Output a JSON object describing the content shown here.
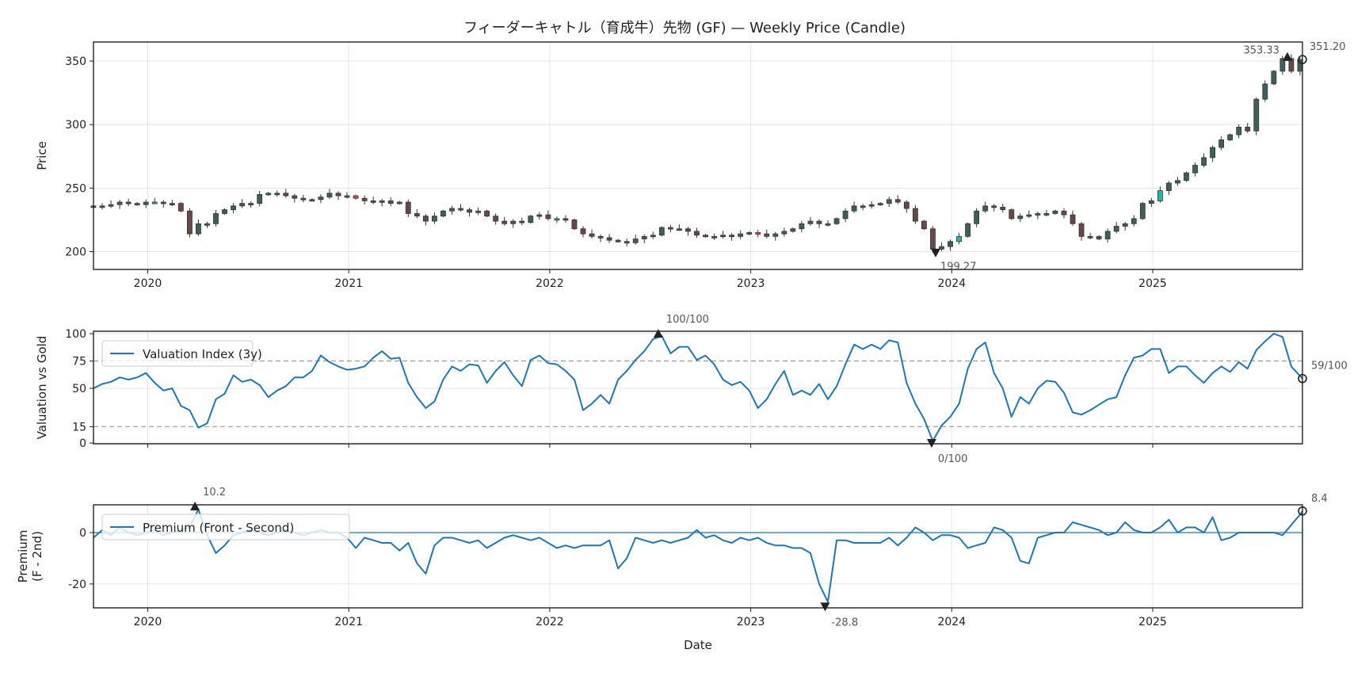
{
  "chart_data": [
    {
      "type": "candlestick",
      "title": "フィーダーキャトル（育成牛）先物 (GF) — Weekly Price (Candle)",
      "ylabel": "Price",
      "xlabel": "",
      "xlim": [
        2019.73,
        2025.745
      ],
      "ylim": [
        186,
        365
      ],
      "grid": true,
      "x_start": 2019.73,
      "x_step": 0.0435,
      "close": [
        236,
        236,
        237,
        239,
        238,
        237,
        239,
        239,
        238,
        238,
        232,
        214,
        222,
        222,
        230,
        233,
        236,
        238,
        238,
        245,
        246,
        246,
        244,
        242,
        241,
        241,
        243,
        246,
        244,
        244,
        242,
        240,
        239,
        240,
        238,
        239,
        230,
        228,
        224,
        228,
        232,
        234,
        233,
        231,
        232,
        228,
        224,
        222,
        224,
        223,
        228,
        229,
        226,
        226,
        225,
        218,
        214,
        212,
        211,
        209,
        208,
        207,
        210,
        212,
        213,
        219,
        218,
        218,
        216,
        213,
        212,
        212,
        213,
        212,
        214,
        215,
        214,
        212,
        214,
        216,
        218,
        222,
        224,
        222,
        222,
        226,
        232,
        236,
        236,
        237,
        238,
        241,
        239,
        234,
        224,
        218,
        202,
        204,
        208,
        212,
        222,
        232,
        236,
        235,
        233,
        226,
        228,
        229,
        230,
        230,
        232,
        229,
        222,
        212,
        212,
        210,
        216,
        220,
        222,
        226,
        238,
        240,
        248,
        254,
        256,
        262,
        268,
        274,
        282,
        288,
        292,
        298,
        295,
        320,
        332,
        342,
        352,
        342,
        351.2
      ],
      "yticks": [
        "200",
        "250",
        "300",
        "350"
      ],
      "ytick_values": [
        200,
        250,
        300,
        350
      ],
      "xticks": [
        "2020",
        "2021",
        "2022",
        "2023",
        "2024",
        "2025"
      ],
      "xtick_values": [
        2020,
        2021,
        2022,
        2023,
        2024,
        2025
      ],
      "annotations": {
        "high": {
          "x": 2025.67,
          "y": 353.33,
          "label": "353.33"
        },
        "low": {
          "x": 2023.92,
          "y": 199.27,
          "label": "199.27"
        },
        "last": {
          "x": 2025.745,
          "y": 351.2,
          "label": "351.20"
        }
      },
      "colors": {
        "up": "#3f5f5a",
        "down": "#6a4848",
        "edge": "#333333",
        "up_accent": "#2bb5a0",
        "down_accent": "#e04848"
      }
    },
    {
      "type": "line",
      "ylabel": "Valuation vs Gold",
      "xlim": [
        2019.73,
        2025.745
      ],
      "ylim": [
        -0.7,
        102.2
      ],
      "grid": true,
      "legend": {
        "label": "Valuation Index (3y)",
        "placement": "top-left"
      },
      "x_start": 2019.73,
      "x_step": 0.0435,
      "values": [
        50,
        54,
        56,
        60,
        58,
        60,
        64,
        55,
        48,
        50,
        34,
        30,
        14,
        18,
        40,
        45,
        62,
        56,
        58,
        53,
        42,
        48,
        52,
        60,
        60,
        66,
        80,
        74,
        70,
        67,
        68,
        70,
        78,
        84,
        77,
        78,
        55,
        42,
        32,
        38,
        58,
        70,
        66,
        72,
        71,
        55,
        66,
        74,
        62,
        52,
        76,
        80,
        73,
        72,
        66,
        58,
        30,
        36,
        44,
        36,
        58,
        66,
        76,
        84,
        95,
        98,
        82,
        88,
        88,
        76,
        80,
        72,
        58,
        53,
        56,
        48,
        32,
        40,
        54,
        66,
        44,
        48,
        44,
        54,
        40,
        52,
        72,
        90,
        86,
        90,
        86,
        94,
        92,
        55,
        36,
        22,
        2,
        16,
        24,
        36,
        68,
        86,
        92,
        64,
        50,
        24,
        42,
        36,
        50,
        57,
        56,
        46,
        28,
        26,
        30,
        35,
        40,
        42,
        62,
        78,
        80,
        86,
        86,
        64,
        70,
        70,
        62,
        55,
        64,
        70,
        65,
        74,
        68,
        85,
        93,
        100,
        97,
        70,
        59
      ],
      "reference_lines": [
        75,
        15
      ],
      "yticks": [
        "0",
        "15",
        "50",
        "75",
        "100"
      ],
      "ytick_values": [
        0,
        15,
        50,
        75,
        100
      ],
      "annotations": {
        "high": {
          "x": 2022.54,
          "y": 100,
          "label": "100/100"
        },
        "low": {
          "x": 2023.9,
          "y": 0,
          "label": "0/100"
        },
        "last": {
          "x": 2025.745,
          "y": 59,
          "label": "59/100"
        }
      },
      "colors": {
        "line": "#1f77b4",
        "ref": "#999999"
      }
    },
    {
      "type": "line",
      "ylabel": "Premium\n(F - 2nd)",
      "ylabel_lines": [
        "Premium",
        "(F - 2nd)"
      ],
      "xlabel": "Date",
      "xlim": [
        2019.73,
        2025.745
      ],
      "ylim": [
        -29.3,
        10.8
      ],
      "grid": true,
      "legend": {
        "label": "Premium (Front - Second)",
        "placement": "top-left"
      },
      "x_start": 2019.73,
      "x_step": 0.0435,
      "values": [
        -2,
        1,
        -1,
        2,
        0,
        -1,
        0,
        1,
        -1,
        0,
        1,
        2,
        9,
        -1,
        -8,
        -5,
        -1,
        0,
        1,
        0,
        -1,
        0,
        1,
        0,
        -1,
        0,
        1,
        0,
        0,
        -2,
        -6,
        -2,
        -3,
        -4,
        -4,
        -7,
        -4,
        -12,
        -16,
        -5,
        -2,
        -2,
        -3,
        -4,
        -3,
        -6,
        -4,
        -2,
        -1,
        -2,
        -3,
        -2,
        -4,
        -6,
        -5,
        -6,
        -5,
        -5,
        -5,
        -3,
        -14,
        -10,
        -2,
        -3,
        -4,
        -3,
        -4,
        -3,
        -2,
        1,
        -2,
        -1,
        -3,
        -4,
        -2,
        -3,
        -2,
        -4,
        -5,
        -5,
        -6,
        -6,
        -8,
        -20,
        -27,
        -3,
        -3,
        -4,
        -4,
        -4,
        -4,
        -2,
        -5,
        -2,
        2,
        0,
        -3,
        -1,
        -1,
        -2,
        -6,
        -5,
        -4,
        2,
        1,
        -2,
        -11,
        -12,
        -2,
        -1,
        0,
        0,
        4,
        3,
        2,
        1,
        -1,
        0,
        4,
        1,
        0,
        0,
        2,
        5,
        0,
        2,
        2,
        0,
        6,
        -3,
        -2,
        0,
        0,
        0,
        0,
        0,
        -1,
        3,
        7,
        8.4
      ],
      "zero_line": 0,
      "yticks": [
        "-20",
        "0"
      ],
      "ytick_values": [
        -20,
        0
      ],
      "xticks": [
        "2020",
        "2021",
        "2022",
        "2023",
        "2024",
        "2025"
      ],
      "xtick_values": [
        2020,
        2021,
        2022,
        2023,
        2024,
        2025
      ],
      "annotations": {
        "high": {
          "x": 2020.235,
          "y": 10.2,
          "label": "10.2"
        },
        "low": {
          "x": 2023.37,
          "y": -28.8,
          "label": "-28.8"
        },
        "last": {
          "x": 2025.745,
          "y": 8.4,
          "label": "8.4"
        }
      },
      "colors": {
        "line": "#1f77b4"
      }
    }
  ]
}
